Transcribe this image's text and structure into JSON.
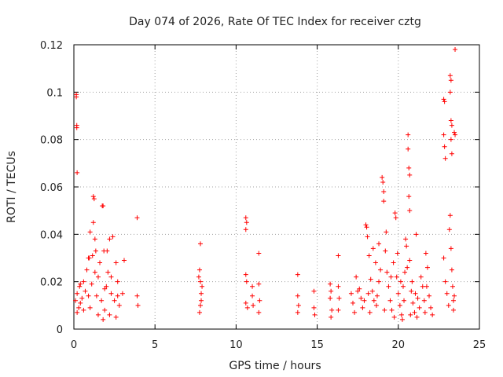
{
  "chart_data": {
    "type": "scatter",
    "title": "Day 074 of 2026, Rate Of TEC Index for receiver cztg",
    "xlabel": "GPS time / hours",
    "ylabel": "ROTI / TECUs",
    "xlim": [
      0,
      25
    ],
    "ylim": [
      0,
      0.12
    ],
    "x_ticks": [
      0,
      5,
      10,
      15,
      20,
      25
    ],
    "x_tick_labels": [
      "0",
      "5",
      "10",
      "15",
      "20",
      "25"
    ],
    "y_ticks": [
      0,
      0.02,
      0.04,
      0.06,
      0.08,
      0.1,
      0.12
    ],
    "y_tick_labels": [
      "0",
      "0.02",
      "0.04",
      "0.06",
      "0.08",
      "0.1",
      "0.12"
    ],
    "grid": true,
    "marker": "plus",
    "marker_color": "#ff0000",
    "series": [
      {
        "name": "ROTI",
        "points": [
          [
            0.15,
            0.099
          ],
          [
            0.15,
            0.098
          ],
          [
            0.18,
            0.086
          ],
          [
            0.18,
            0.085
          ],
          [
            0.2,
            0.066
          ],
          [
            0.1,
            0.012
          ],
          [
            0.2,
            0.015
          ],
          [
            0.3,
            0.009
          ],
          [
            0.35,
            0.018
          ],
          [
            0.4,
            0.011
          ],
          [
            0.5,
            0.013
          ],
          [
            0.6,
            0.02
          ],
          [
            0.7,
            0.016
          ],
          [
            0.8,
            0.025
          ],
          [
            0.9,
            0.03
          ],
          [
            0.95,
            0.03
          ],
          [
            1.0,
            0.041
          ],
          [
            1.1,
            0.019
          ],
          [
            1.2,
            0.045
          ],
          [
            1.2,
            0.056
          ],
          [
            1.25,
            0.055
          ],
          [
            1.3,
            0.038
          ],
          [
            1.35,
            0.033
          ],
          [
            1.4,
            0.014
          ],
          [
            1.5,
            0.022
          ],
          [
            1.6,
            0.028
          ],
          [
            1.7,
            0.012
          ],
          [
            1.75,
            0.052
          ],
          [
            1.8,
            0.052
          ],
          [
            1.85,
            0.033
          ],
          [
            1.9,
            0.008
          ],
          [
            2.0,
            0.018
          ],
          [
            2.1,
            0.024
          ],
          [
            2.2,
            0.038
          ],
          [
            2.3,
            0.015
          ],
          [
            2.4,
            0.039
          ],
          [
            2.5,
            0.012
          ],
          [
            2.6,
            0.028
          ],
          [
            2.7,
            0.02
          ],
          [
            2.8,
            0.01
          ],
          [
            3.0,
            0.015
          ],
          [
            3.1,
            0.029
          ],
          [
            3.9,
            0.047
          ],
          [
            3.9,
            0.014
          ],
          [
            3.95,
            0.01
          ],
          [
            0.2,
            0.007
          ],
          [
            0.6,
            0.008
          ],
          [
            1.0,
            0.009
          ],
          [
            1.5,
            0.006
          ],
          [
            1.8,
            0.004
          ],
          [
            2.2,
            0.006
          ],
          [
            2.6,
            0.005
          ],
          [
            0.4,
            0.019
          ],
          [
            0.9,
            0.014
          ],
          [
            1.3,
            0.024
          ],
          [
            1.9,
            0.017
          ],
          [
            2.3,
            0.022
          ],
          [
            2.7,
            0.014
          ],
          [
            1.15,
            0.031
          ],
          [
            2.05,
            0.033
          ],
          [
            7.8,
            0.036
          ],
          [
            7.75,
            0.025
          ],
          [
            7.8,
            0.02
          ],
          [
            7.85,
            0.015
          ],
          [
            7.8,
            0.01
          ],
          [
            7.75,
            0.007
          ],
          [
            7.9,
            0.018
          ],
          [
            7.7,
            0.022
          ],
          [
            7.85,
            0.012
          ],
          [
            10.6,
            0.047
          ],
          [
            10.65,
            0.045
          ],
          [
            10.6,
            0.042
          ],
          [
            10.6,
            0.023
          ],
          [
            10.65,
            0.02
          ],
          [
            10.6,
            0.011
          ],
          [
            10.7,
            0.009
          ],
          [
            11.0,
            0.018
          ],
          [
            11.0,
            0.014
          ],
          [
            11.05,
            0.01
          ],
          [
            11.4,
            0.032
          ],
          [
            11.4,
            0.019
          ],
          [
            11.45,
            0.012
          ],
          [
            11.4,
            0.007
          ],
          [
            13.8,
            0.023
          ],
          [
            13.8,
            0.014
          ],
          [
            13.85,
            0.01
          ],
          [
            13.8,
            0.007
          ],
          [
            14.8,
            0.016
          ],
          [
            14.8,
            0.009
          ],
          [
            14.85,
            0.006
          ],
          [
            15.8,
            0.019
          ],
          [
            15.85,
            0.016
          ],
          [
            15.8,
            0.013
          ],
          [
            15.9,
            0.008
          ],
          [
            15.85,
            0.005
          ],
          [
            16.3,
            0.031
          ],
          [
            16.3,
            0.018
          ],
          [
            16.35,
            0.013
          ],
          [
            16.3,
            0.008
          ],
          [
            17.1,
            0.015
          ],
          [
            17.2,
            0.011
          ],
          [
            17.3,
            0.007
          ],
          [
            17.6,
            0.017
          ],
          [
            17.7,
            0.013
          ],
          [
            17.8,
            0.009
          ],
          [
            17.9,
            0.012
          ],
          [
            18.0,
            0.044
          ],
          [
            18.05,
            0.043
          ],
          [
            18.1,
            0.039
          ],
          [
            18.2,
            0.031
          ],
          [
            18.3,
            0.021
          ],
          [
            18.4,
            0.016
          ],
          [
            18.5,
            0.012
          ],
          [
            18.6,
            0.028
          ],
          [
            18.7,
            0.014
          ],
          [
            18.8,
            0.02
          ],
          [
            18.9,
            0.025
          ],
          [
            19.0,
            0.064
          ],
          [
            19.05,
            0.062
          ],
          [
            19.1,
            0.058
          ],
          [
            19.1,
            0.054
          ],
          [
            19.2,
            0.033
          ],
          [
            19.3,
            0.024
          ],
          [
            19.4,
            0.018
          ],
          [
            19.5,
            0.012
          ],
          [
            19.6,
            0.008
          ],
          [
            19.7,
            0.028
          ],
          [
            19.8,
            0.049
          ],
          [
            19.85,
            0.047
          ],
          [
            19.9,
            0.022
          ],
          [
            20.0,
            0.015
          ],
          [
            20.1,
            0.01
          ],
          [
            20.2,
            0.006
          ],
          [
            20.3,
            0.018
          ],
          [
            20.4,
            0.024
          ],
          [
            20.45,
            0.038
          ],
          [
            20.5,
            0.035
          ],
          [
            20.6,
            0.082
          ],
          [
            20.6,
            0.076
          ],
          [
            20.65,
            0.068
          ],
          [
            20.7,
            0.065
          ],
          [
            20.65,
            0.056
          ],
          [
            20.7,
            0.05
          ],
          [
            20.7,
            0.029
          ],
          [
            20.8,
            0.016
          ],
          [
            20.9,
            0.011
          ],
          [
            21.0,
            0.007
          ],
          [
            21.1,
            0.04
          ],
          [
            21.2,
            0.013
          ],
          [
            21.4,
            0.022
          ],
          [
            21.5,
            0.018
          ],
          [
            21.6,
            0.012
          ],
          [
            21.7,
            0.032
          ],
          [
            21.8,
            0.026
          ],
          [
            21.9,
            0.014
          ],
          [
            22.0,
            0.009
          ],
          [
            22.1,
            0.006
          ],
          [
            22.8,
            0.097
          ],
          [
            22.85,
            0.096
          ],
          [
            22.8,
            0.082
          ],
          [
            22.85,
            0.077
          ],
          [
            22.9,
            0.072
          ],
          [
            22.8,
            0.03
          ],
          [
            22.9,
            0.02
          ],
          [
            23.0,
            0.015
          ],
          [
            23.1,
            0.01
          ],
          [
            23.15,
            0.042
          ],
          [
            23.2,
            0.107
          ],
          [
            23.25,
            0.105
          ],
          [
            23.2,
            0.1
          ],
          [
            23.25,
            0.088
          ],
          [
            23.3,
            0.086
          ],
          [
            23.25,
            0.08
          ],
          [
            23.3,
            0.074
          ],
          [
            23.2,
            0.048
          ],
          [
            23.25,
            0.034
          ],
          [
            23.3,
            0.025
          ],
          [
            23.35,
            0.018
          ],
          [
            23.4,
            0.012
          ],
          [
            23.45,
            0.083
          ],
          [
            23.5,
            0.118
          ],
          [
            23.5,
            0.082
          ],
          [
            23.4,
            0.008
          ],
          [
            23.45,
            0.014
          ],
          [
            17.4,
            0.022
          ],
          [
            17.5,
            0.016
          ],
          [
            18.15,
            0.015
          ],
          [
            18.45,
            0.034
          ],
          [
            18.8,
            0.036
          ],
          [
            19.25,
            0.041
          ],
          [
            19.55,
            0.022
          ],
          [
            19.95,
            0.032
          ],
          [
            20.15,
            0.02
          ],
          [
            20.35,
            0.012
          ],
          [
            20.55,
            0.026
          ],
          [
            20.85,
            0.02
          ],
          [
            21.05,
            0.015
          ],
          [
            21.3,
            0.009
          ],
          [
            21.75,
            0.018
          ],
          [
            18.25,
            0.007
          ],
          [
            18.65,
            0.01
          ],
          [
            19.15,
            0.008
          ],
          [
            19.75,
            0.005
          ],
          [
            20.25,
            0.004
          ],
          [
            20.75,
            0.006
          ],
          [
            21.15,
            0.005
          ],
          [
            21.65,
            0.007
          ]
        ]
      }
    ]
  }
}
